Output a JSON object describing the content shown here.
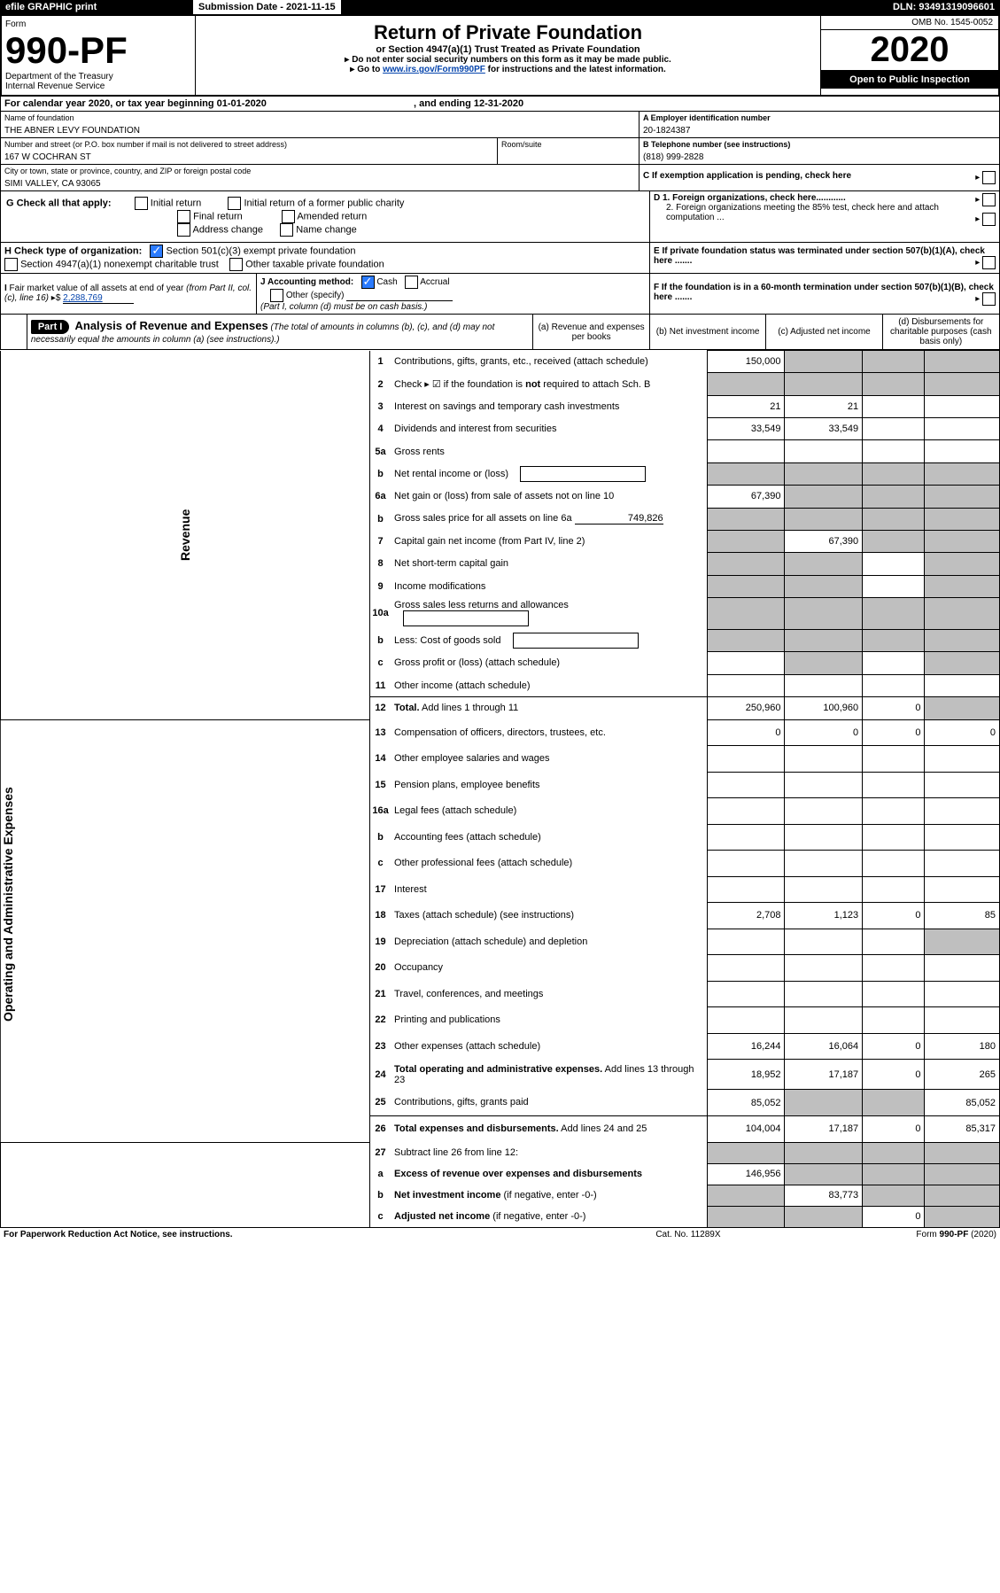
{
  "topbar": {
    "efile": "efile GRAPHIC print",
    "subm_label": "Submission Date - 2021-11-15",
    "dln": "DLN: 93491319096601"
  },
  "header": {
    "form_word": "Form",
    "form_no": "990-PF",
    "dept": "Department of the Treasury",
    "irs": "Internal Revenue Service",
    "title": "Return of Private Foundation",
    "subtitle": "or Section 4947(a)(1) Trust Treated as Private Foundation",
    "note1": "Do not enter social security numbers on this form as it may be made public.",
    "note2_prefix": "Go to ",
    "note2_link": "www.irs.gov/Form990PF",
    "note2_suffix": " for instructions and the latest information.",
    "omb": "OMB No. 1545-0052",
    "year": "2020",
    "open": "Open to Public Inspection"
  },
  "cal": {
    "line": "For calendar year 2020, or tax year beginning 01-01-2020",
    "end": ", and ending 12-31-2020"
  },
  "ident": {
    "name_label": "Name of foundation",
    "name": "THE ABNER LEVY FOUNDATION",
    "addr_label": "Number and street (or P.O. box number if mail is not delivered to street address)",
    "addr": "167 W COCHRAN ST",
    "room_label": "Room/suite",
    "city_label": "City or town, state or province, country, and ZIP or foreign postal code",
    "city": "SIMI VALLEY, CA  93065",
    "a_label": "A Employer identification number",
    "a_val": "20-1824387",
    "b_label": "B Telephone number (see instructions)",
    "b_val": "(818) 999-2828",
    "c_label": "C If exemption application is pending, check here"
  },
  "g": {
    "label": "G Check all that apply:",
    "opts": [
      "Initial return",
      "Final return",
      "Address change",
      "Initial return of a former public charity",
      "Amended return",
      "Name change"
    ]
  },
  "h": {
    "label": "H Check type of organization:",
    "opt1": "Section 501(c)(3) exempt private foundation",
    "opt2": "Section 4947(a)(1) nonexempt charitable trust",
    "opt3": "Other taxable private foundation"
  },
  "d": {
    "d1": "D 1. Foreign organizations, check here............",
    "d2": "2. Foreign organizations meeting the 85% test, check here and attach computation ..."
  },
  "e": "E  If private foundation status was terminated under section 507(b)(1)(A), check here .......",
  "f": "F  If the foundation is in a 60-month termination under section 507(b)(1)(B), check here .......",
  "i": {
    "label": "I Fair market value of all assets at end of year (from Part II, col. (c), line 16) ▸$ ",
    "val": "2,288,769"
  },
  "j": {
    "label": "J Accounting method:",
    "cash": "Cash",
    "accr": "Accrual",
    "other": "Other (specify)",
    "note": "(Part I, column (d) must be on cash basis.)"
  },
  "part1": {
    "label": "Part I",
    "title": "Analysis of Revenue and Expenses",
    "title_note": " (The total of amounts in columns (b), (c), and (d) may not necessarily equal the amounts in column (a) (see instructions).)",
    "cols": {
      "a": "(a)   Revenue and expenses per books",
      "b": "(b)   Net investment income",
      "c": "(c)   Adjusted net income",
      "d": "(d)  Disbursements for charitable purposes (cash basis only)"
    }
  },
  "vert": {
    "rev": "Revenue",
    "exp": "Operating and Administrative Expenses"
  },
  "rows": [
    {
      "n": "1",
      "t": "Contributions, gifts, grants, etc., received (attach schedule)",
      "a": "150,000",
      "b": "",
      "c": "",
      "d": "",
      "greyB": true,
      "greyC": true,
      "greyD": true
    },
    {
      "n": "2",
      "t": "Check ▸ ☑ if the foundation is <b>not</b> required to attach Sch. B",
      "noCells": true
    },
    {
      "n": "3",
      "t": "Interest on savings and temporary cash investments",
      "a": "21",
      "b": "21"
    },
    {
      "n": "4",
      "t": "Dividends and interest from securities",
      "a": "33,549",
      "b": "33,549"
    },
    {
      "n": "5a",
      "t": "Gross rents"
    },
    {
      "n": "b",
      "t": "Net rental income or (loss)",
      "inlineBox": true,
      "noCells": true
    },
    {
      "n": "6a",
      "t": "Net gain or (loss) from sale of assets not on line 10",
      "a": "67,390",
      "greyB": true,
      "greyC": true,
      "greyD": true
    },
    {
      "n": "b",
      "t": "Gross sales price for all assets on line 6a",
      "inlineVal": "749,826",
      "noCells": true
    },
    {
      "n": "7",
      "t": "Capital gain net income (from Part IV, line 2)",
      "b": "67,390",
      "greyA": true,
      "greyC": true,
      "greyD": true
    },
    {
      "n": "8",
      "t": "Net short-term capital gain",
      "greyA": true,
      "greyB": true,
      "greyD": true
    },
    {
      "n": "9",
      "t": "Income modifications",
      "greyA": true,
      "greyB": true,
      "greyD": true
    },
    {
      "n": "10a",
      "t": "Gross sales less returns and allowances",
      "inlineBox": true,
      "noCells": true
    },
    {
      "n": "b",
      "t": "Less: Cost of goods sold",
      "inlineBox": true,
      "noCells": true
    },
    {
      "n": "c",
      "t": "Gross profit or (loss) (attach schedule)",
      "greyB": true,
      "greyD": true
    },
    {
      "n": "11",
      "t": "Other income (attach schedule)"
    },
    {
      "n": "12",
      "t": "<b>Total.</b> Add lines 1 through 11",
      "a": "250,960",
      "b": "100,960",
      "c": "0",
      "greyD": true,
      "sect": true
    },
    {
      "n": "13",
      "t": "Compensation of officers, directors, trustees, etc.",
      "a": "0",
      "b": "0",
      "c": "0",
      "d": "0"
    },
    {
      "n": "14",
      "t": "Other employee salaries and wages"
    },
    {
      "n": "15",
      "t": "Pension plans, employee benefits"
    },
    {
      "n": "16a",
      "t": "Legal fees (attach schedule)"
    },
    {
      "n": "b",
      "t": "Accounting fees (attach schedule)"
    },
    {
      "n": "c",
      "t": "Other professional fees (attach schedule)"
    },
    {
      "n": "17",
      "t": "Interest"
    },
    {
      "n": "18",
      "t": "Taxes (attach schedule) (see instructions)",
      "a": "2,708",
      "b": "1,123",
      "c": "0",
      "d": "85"
    },
    {
      "n": "19",
      "t": "Depreciation (attach schedule) and depletion",
      "greyD": true
    },
    {
      "n": "20",
      "t": "Occupancy"
    },
    {
      "n": "21",
      "t": "Travel, conferences, and meetings"
    },
    {
      "n": "22",
      "t": "Printing and publications"
    },
    {
      "n": "23",
      "t": "Other expenses (attach schedule)",
      "a": "16,244",
      "b": "16,064",
      "c": "0",
      "d": "180"
    },
    {
      "n": "24",
      "t": "<b>Total operating and administrative expenses.</b> Add lines 13 through 23",
      "a": "18,952",
      "b": "17,187",
      "c": "0",
      "d": "265"
    },
    {
      "n": "25",
      "t": "Contributions, gifts, grants paid",
      "a": "85,052",
      "d": "85,052",
      "greyB": true,
      "greyC": true
    },
    {
      "n": "26",
      "t": "<b>Total expenses and disbursements.</b> Add lines 24 and 25",
      "a": "104,004",
      "b": "17,187",
      "c": "0",
      "d": "85,317",
      "sect": true
    },
    {
      "n": "27",
      "t": "Subtract line 26 from line 12:",
      "greyA": true,
      "greyB": true,
      "greyC": true,
      "greyD": true
    },
    {
      "n": "a",
      "t": "<b>Excess of revenue over expenses and disbursements</b>",
      "a": "146,956",
      "greyB": true,
      "greyC": true,
      "greyD": true
    },
    {
      "n": "b",
      "t": "<b>Net investment income</b> (if negative, enter -0-)",
      "b": "83,773",
      "greyA": true,
      "greyC": true,
      "greyD": true
    },
    {
      "n": "c",
      "t": "<b>Adjusted net income</b> (if negative, enter -0-)",
      "c": "0",
      "greyA": true,
      "greyB": true,
      "greyD": true
    }
  ],
  "footer": {
    "left": "For Paperwork Reduction Act Notice, see instructions.",
    "mid": "Cat. No. 11289X",
    "right": "Form 990-PF (2020)"
  }
}
